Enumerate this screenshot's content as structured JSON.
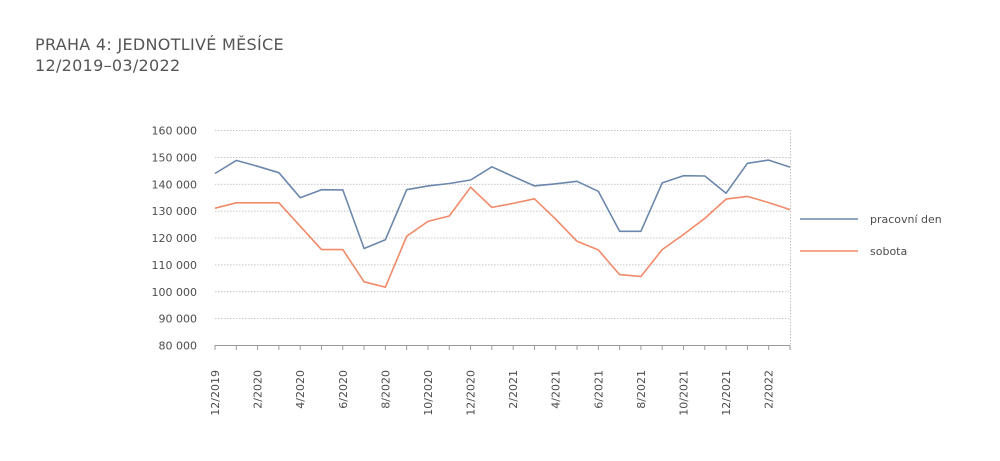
{
  "header": {
    "title": "PRAHA 4: JEDNOTLIVÉ MĚSÍCE",
    "subtitle": "12/2019–03/2022"
  },
  "chart_data": {
    "type": "line",
    "title": "PRAHA 4: JEDNOTLIVÉ MĚSÍCE",
    "subtitle": "12/2019–03/2022",
    "xlabel": "",
    "ylabel": "",
    "ylim": [
      80000,
      160000
    ],
    "yticks": [
      80000,
      90000,
      100000,
      110000,
      120000,
      130000,
      140000,
      150000,
      160000
    ],
    "ytick_labels": [
      "80 000",
      "90 000",
      "100 000",
      "110 000",
      "120 000",
      "130 000",
      "140 000",
      "150 000",
      "160 000"
    ],
    "grid": true,
    "legend_position": "right",
    "categories": [
      "12/2019",
      "1/2020",
      "2/2020",
      "3/2020",
      "4/2020",
      "5/2020",
      "6/2020",
      "7/2020",
      "8/2020",
      "9/2020",
      "10/2020",
      "11/2020",
      "12/2020",
      "1/2021",
      "2/2021",
      "3/2021",
      "4/2021",
      "5/2021",
      "6/2021",
      "7/2021",
      "8/2021",
      "9/2021",
      "10/2021",
      "11/2021",
      "12/2021",
      "1/2022",
      "2/2022",
      "3/2022"
    ],
    "xtick_labels": [
      "12/2019",
      "",
      "2/2020",
      "",
      "4/2020",
      "",
      "6/2020",
      "",
      "8/2020",
      "",
      "10/2020",
      "",
      "12/2020",
      "",
      "2/2021",
      "",
      "4/2021",
      "",
      "6/2021",
      "",
      "8/2021",
      "",
      "10/2021",
      "",
      "12/2021",
      "",
      "2/2022",
      ""
    ],
    "series": [
      {
        "name": "pracovní den",
        "color": "#6b87ab",
        "values": [
          143800,
          148700,
          146500,
          144100,
          134800,
          137800,
          137700,
          115900,
          119200,
          137800,
          139200,
          140100,
          141400,
          146300,
          142700,
          139200,
          140000,
          140900,
          137200,
          122300,
          122300,
          140300,
          143000,
          142900,
          136500,
          147600,
          148800,
          146200
        ]
      },
      {
        "name": "sobota",
        "color": "#f08a68",
        "values": [
          130900,
          132900,
          132900,
          132900,
          124200,
          115500,
          115500,
          103500,
          101500,
          120500,
          126000,
          128000,
          138700,
          131200,
          132700,
          134400,
          126800,
          118600,
          115400,
          106200,
          105500,
          115500,
          121100,
          127100,
          134300,
          135300,
          133000,
          130400
        ]
      }
    ]
  }
}
